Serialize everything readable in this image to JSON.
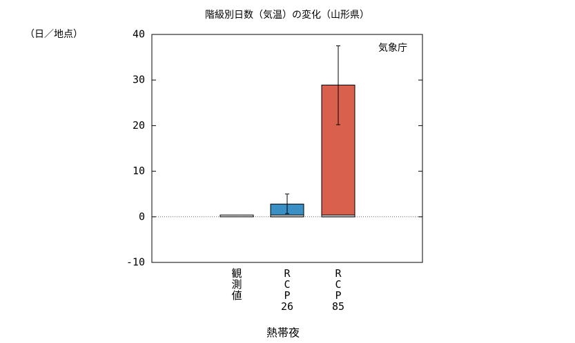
{
  "chart_data": {
    "type": "bar",
    "title": "階級別日数（気温）の変化（山形県）",
    "y_unit_label": "（日／地点）",
    "annotation": "気象庁",
    "x_label": "熱帯夜",
    "categories": [
      "観測値",
      "RCP26",
      "RCP85"
    ],
    "values": [
      0.4,
      2.8,
      28.9
    ],
    "colors": [
      "#e6e6e6",
      "#3a8fc4",
      "#d9604c"
    ],
    "error_low": [
      null,
      0.7,
      20.2
    ],
    "error_high": [
      null,
      5.0,
      37.5
    ],
    "ylim": [
      -10,
      40
    ],
    "yticks": [
      -10,
      0,
      10,
      20,
      30,
      40
    ]
  }
}
